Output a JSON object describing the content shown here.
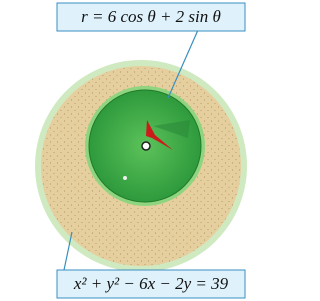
{
  "labels": {
    "inner_curve": "r = 6 cos θ + 2 sin θ",
    "outer_curve": "x² + y² − 6x − 2y = 39"
  }
}
